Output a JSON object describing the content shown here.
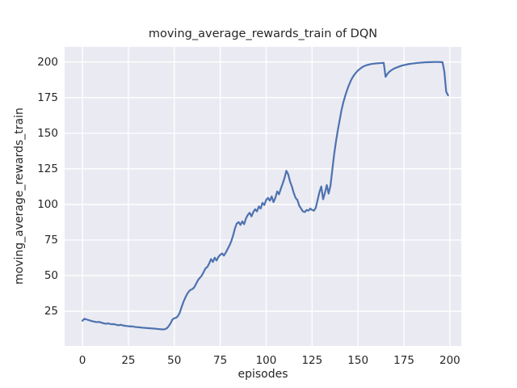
{
  "chart_data": {
    "type": "line",
    "title": "moving_average_rewards_train of DQN",
    "xlabel": "episodes",
    "ylabel": "moving_average_rewards_train",
    "x_ticks": [
      0,
      25,
      50,
      75,
      100,
      125,
      150,
      175,
      200
    ],
    "y_ticks": [
      25,
      50,
      75,
      100,
      125,
      150,
      175,
      200
    ],
    "xlim": [
      -9.7,
      206.2
    ],
    "ylim": [
      0.6,
      210.6
    ],
    "grid": true,
    "legend_position": "none",
    "line_color": "#4c72b0",
    "line_width": 2.2,
    "plot_bg_color": "#eaeaf2",
    "grid_color": "#ffffff",
    "text_color": "#262626",
    "series": [
      {
        "name": "moving_average_rewards_train",
        "x_start": 0,
        "x_step": 1,
        "values": [
          18.3,
          19.7,
          19.3,
          18.9,
          18.5,
          18.1,
          17.8,
          17.5,
          17.3,
          17.5,
          17.1,
          16.7,
          16.4,
          16.2,
          16.5,
          16.1,
          15.8,
          16.0,
          15.6,
          15.3,
          15.2,
          15.5,
          15.0,
          14.8,
          14.6,
          14.5,
          14.3,
          14.4,
          14.1,
          13.9,
          13.8,
          13.7,
          13.5,
          13.4,
          13.3,
          13.2,
          13.1,
          13.0,
          12.9,
          12.8,
          12.7,
          12.5,
          12.4,
          12.3,
          12.2,
          12.4,
          13.1,
          14.6,
          16.6,
          19.2,
          20.1,
          20.4,
          21.6,
          24.1,
          28.0,
          31.6,
          34.6,
          37.1,
          39.0,
          40.1,
          40.6,
          42.1,
          44.6,
          47.0,
          48.6,
          50.1,
          52.6,
          55.1,
          56.1,
          58.6,
          61.6,
          59.6,
          62.6,
          60.6,
          63.1,
          64.6,
          65.6,
          64.1,
          66.1,
          68.6,
          71.1,
          74.1,
          78.1,
          83.1,
          86.6,
          87.6,
          85.6,
          88.1,
          86.1,
          90.1,
          92.6,
          94.1,
          91.6,
          94.6,
          96.6,
          95.1,
          98.6,
          97.1,
          101.1,
          99.6,
          103.1,
          104.6,
          102.6,
          105.6,
          101.6,
          104.6,
          109.1,
          107.1,
          111.1,
          114.6,
          118.6,
          123.6,
          121.1,
          116.1,
          112.6,
          108.1,
          104.6,
          103.1,
          99.1,
          97.1,
          95.1,
          94.6,
          96.1,
          95.6,
          97.1,
          96.1,
          95.6,
          97.6,
          103.1,
          108.6,
          112.6,
          103.6,
          108.1,
          113.6,
          107.6,
          113.1,
          124.1,
          135.1,
          144.1,
          152.1,
          159.1,
          166.1,
          171.6,
          176.1,
          180.1,
          183.6,
          186.6,
          189.1,
          191.1,
          192.6,
          194.1,
          195.1,
          196.1,
          196.9,
          197.4,
          197.9,
          198.2,
          198.5,
          198.7,
          198.9,
          199.0,
          199.1,
          199.2,
          199.3,
          199.4,
          189.6,
          191.6,
          193.1,
          194.1,
          194.9,
          195.6,
          196.1,
          196.6,
          197.1,
          197.5,
          197.8,
          198.1,
          198.4,
          198.6,
          198.8,
          199.0,
          199.1,
          199.3,
          199.4,
          199.5,
          199.6,
          199.7,
          199.8,
          199.8,
          199.9,
          199.9,
          200.0,
          200.0,
          200.0,
          200.0,
          199.9,
          199.9,
          193.1,
          179.1,
          176.6
        ]
      }
    ]
  }
}
